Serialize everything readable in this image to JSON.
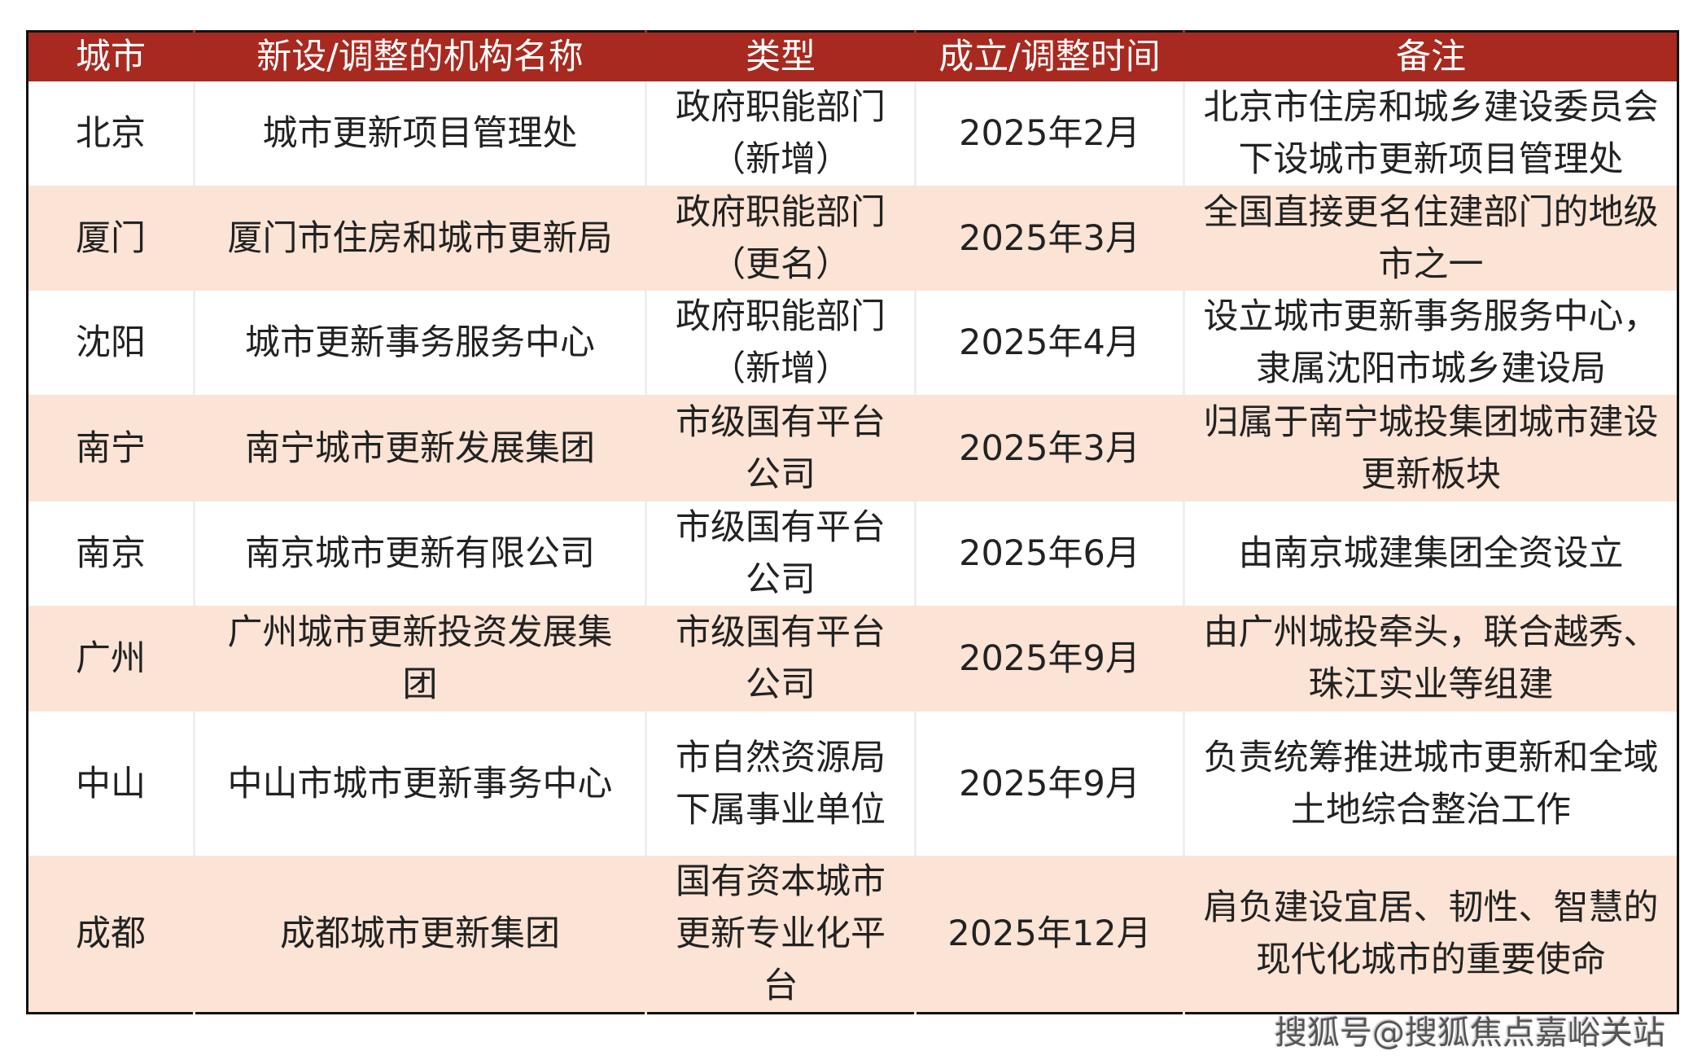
{
  "table": {
    "header": [
      "城市",
      "新设/调整的机构名称",
      "类型",
      "成立/调整时间",
      "备注"
    ],
    "rows": [
      [
        "北京",
        "城市更新项目管理处",
        "政府职能部门（新增）",
        "2025年2月",
        "北京市住房和城乡建设委员会下设城市更新项目管理处"
      ],
      [
        "厦门",
        "厦门市住房和城市更新局",
        "政府职能部门（更名）",
        "2025年3月",
        "全国直接更名住建部门的地级市之一"
      ],
      [
        "沈阳",
        "城市更新事务服务中心",
        "政府职能部门（新增）",
        "2025年4月",
        "设立城市更新事务服务中心，隶属沈阳市城乡建设局"
      ],
      [
        "南宁",
        "南宁城市更新发展集团",
        "市级国有平台公司",
        "2025年3月",
        "归属于南宁城投集团城市建设更新板块"
      ],
      [
        "南京",
        "南京城市更新有限公司",
        "市级国有平台公司",
        "2025年6月",
        "由南京城建集团全资设立"
      ],
      [
        "广州",
        "广州城市更新投资发展集团",
        "市级国有平台公司",
        "2025年9月",
        "由广州城投牵头，联合越秀、珠江实业等组建"
      ],
      [
        "中山",
        "中山市城市更新事务中心",
        "市自然资源局下属事业单位",
        "2025年9月",
        "负责统筹推进城市更新和全域土地综合整治工作"
      ],
      [
        "成都",
        "成都城市更新集团",
        "国有资本城市更新专业化平台",
        "2025年12月",
        "肩负建设宜居、韧性、智慧的现代化城市的重要使命"
      ]
    ]
  },
  "footer": "搜狐号@搜狐焦点嘉峪关站"
}
